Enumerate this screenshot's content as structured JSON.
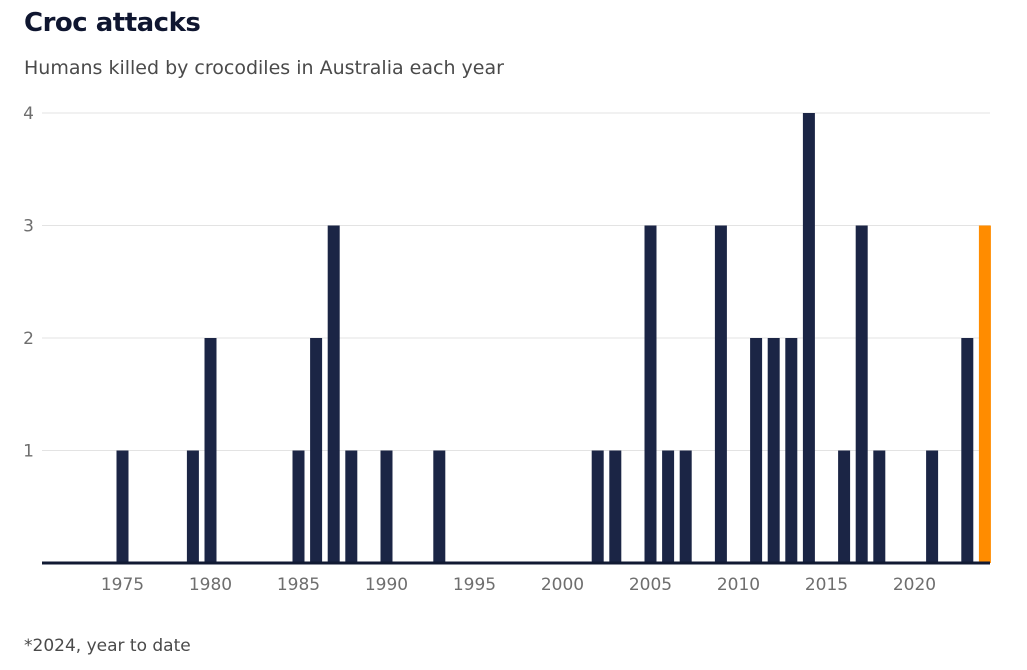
{
  "chart_data": {
    "type": "bar",
    "title": "Croc attacks",
    "subtitle": "Humans killed by crocodiles in Australia each year",
    "footnote": "*2024, year to date",
    "xlabel": "",
    "ylabel": "",
    "x_range": [
      1971,
      2024
    ],
    "ylim": [
      0,
      4
    ],
    "y_ticks": [
      1,
      2,
      3,
      4
    ],
    "x_ticks": [
      1975,
      1980,
      1985,
      1990,
      1995,
      2000,
      2005,
      2010,
      2015,
      2020
    ],
    "grid": true,
    "colors": {
      "bar": "#1b2545",
      "highlight": "#ff8c00",
      "axis": "#111a33",
      "grid": "#e3e3e3"
    },
    "highlight_year": 2024,
    "years": [
      1975,
      1979,
      1980,
      1985,
      1986,
      1987,
      1988,
      1990,
      1993,
      2002,
      2003,
      2005,
      2006,
      2007,
      2009,
      2011,
      2012,
      2013,
      2014,
      2016,
      2017,
      2018,
      2021,
      2023,
      2024
    ],
    "values": [
      1,
      1,
      2,
      1,
      2,
      3,
      1,
      1,
      1,
      1,
      1,
      3,
      1,
      1,
      3,
      2,
      2,
      2,
      4,
      1,
      3,
      1,
      1,
      2,
      3
    ]
  }
}
